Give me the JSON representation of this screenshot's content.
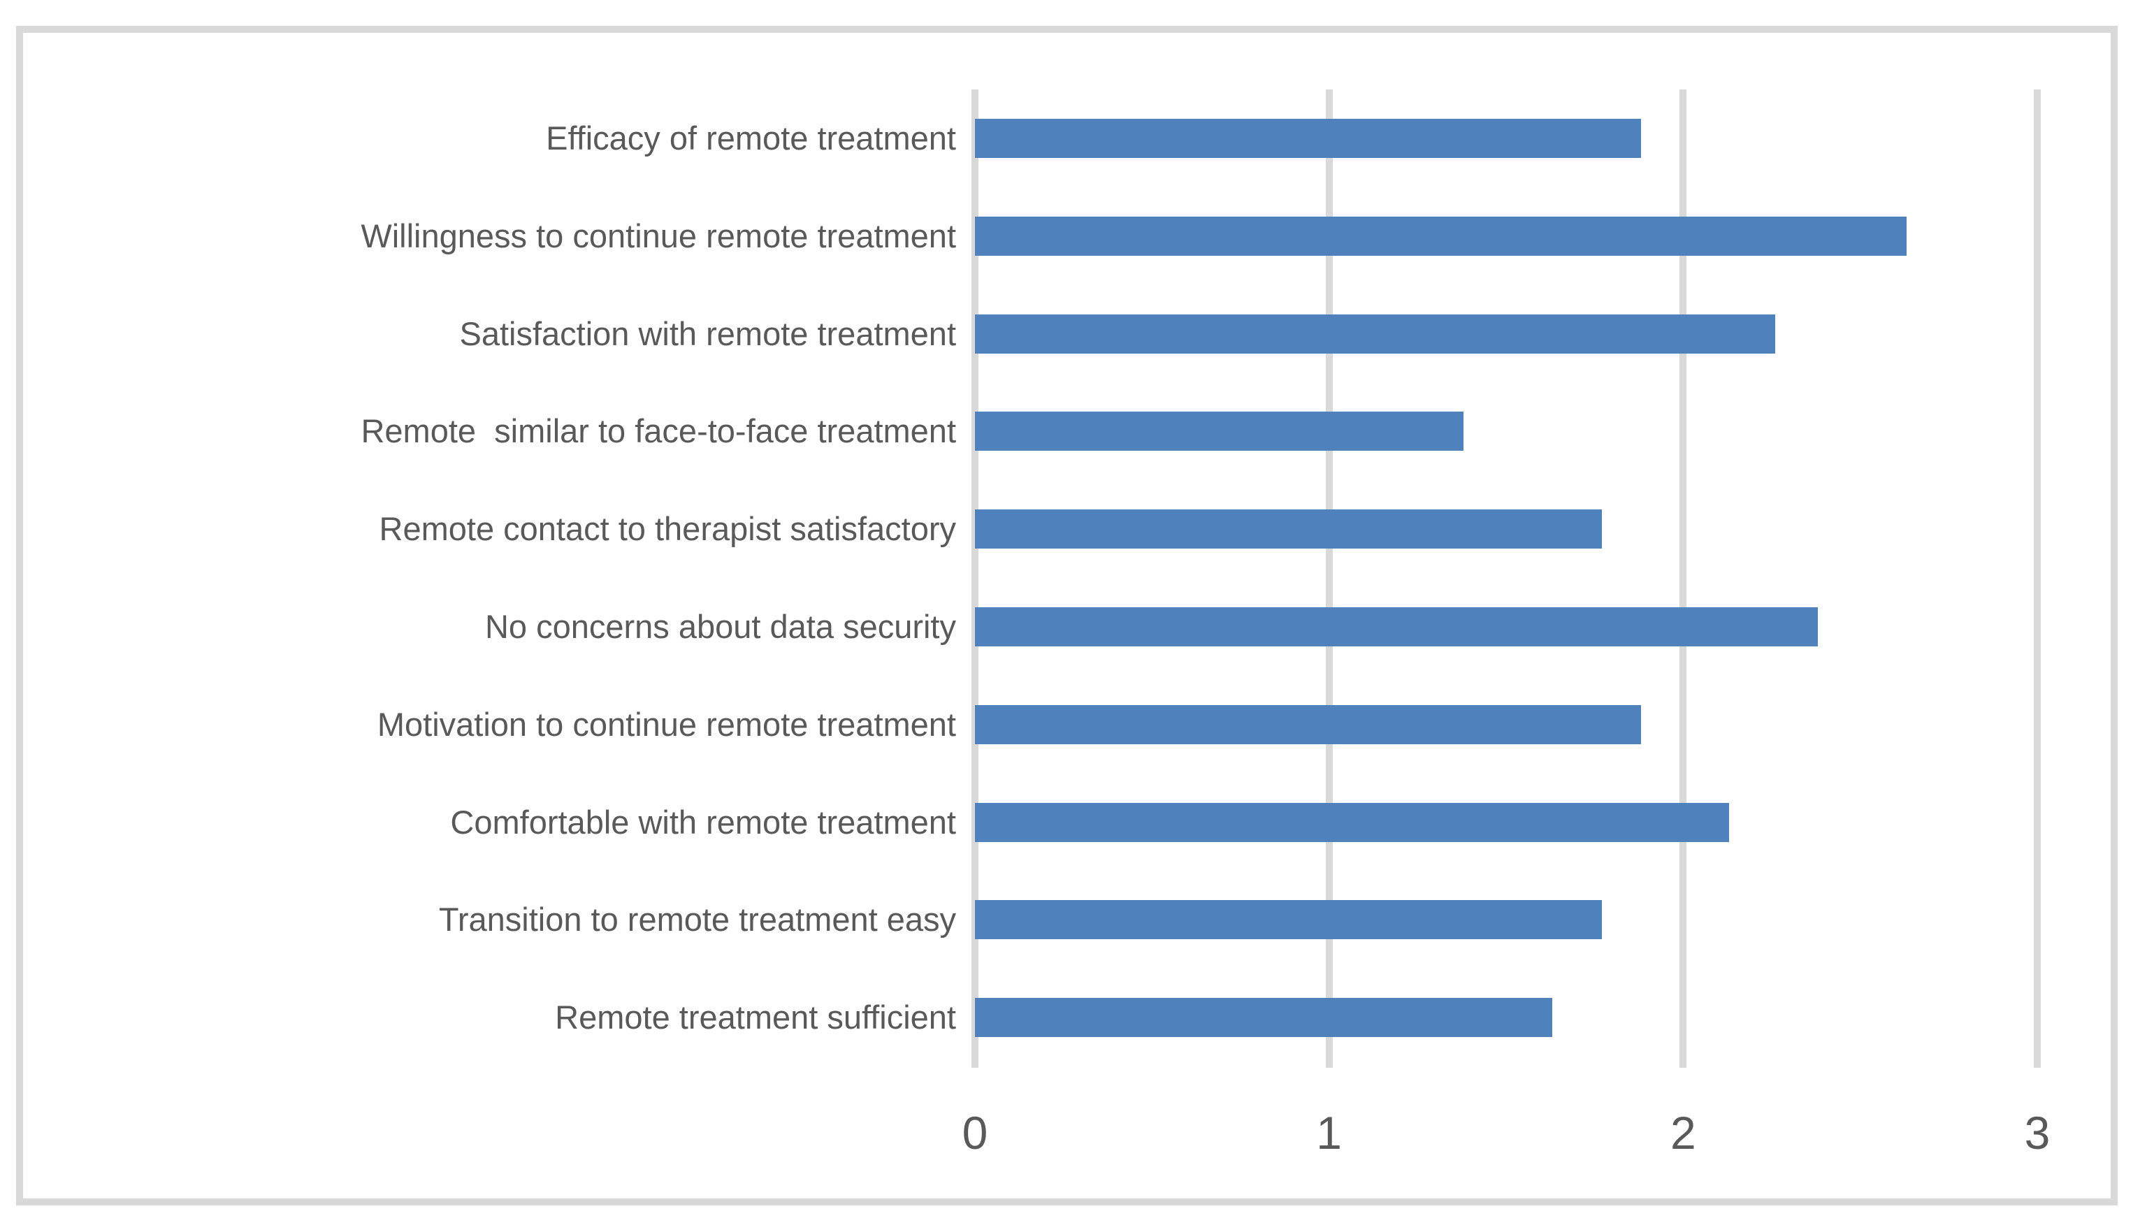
{
  "chart_data": {
    "type": "bar",
    "orientation": "horizontal",
    "title": "",
    "xlabel": "",
    "ylabel": "",
    "categories": [
      "Efficacy of remote treatment",
      "Willingness to continue remote treatment",
      "Satisfaction with remote treatment",
      "Remote  similar to face-to-face treatment",
      "Remote contact to therapist satisfactory",
      "No concerns about data security",
      "Motivation to continue remote treatment",
      "Comfortable with remote treatment",
      "Transition to remote treatment easy",
      "Remote treatment sufficient"
    ],
    "values": [
      1.88,
      2.63,
      2.26,
      1.38,
      1.77,
      2.38,
      1.88,
      2.13,
      1.77,
      1.63
    ],
    "x_ticks": [
      "0",
      "1",
      "2",
      "3"
    ],
    "xlim": [
      0,
      3
    ],
    "grid": "vertical-only",
    "legend": "none",
    "colors": {
      "bar": "#4F81BD",
      "gridline": "#D9D9D9",
      "frame_border": "#D9D9D9",
      "text": "#595959",
      "background": "#FFFFFF"
    }
  }
}
